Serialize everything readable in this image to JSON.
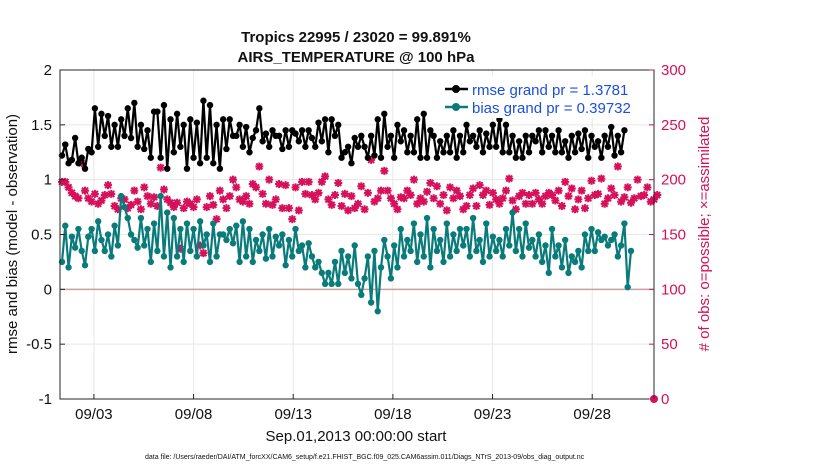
{
  "chart_data": {
    "type": "line",
    "title_line1": "Tropics 22995 / 23020 = 99.891%",
    "title_line2": "AIRS_TEMPERATURE @ 100 hPa",
    "xlabel": "Sep.01,2013 00:00:00 start",
    "ylabel_left": "rmse and bias (model - observation)",
    "ylabel_right": "# of obs: o=possible; ×=assimilated",
    "footer": "data file: /Users/raeder/DAI/ATM_forcXX/CAM6_setup/f.e21.FHIST_BGC.f09_025.CAM6assim.011/Diags_NTrS_2013-09/obs_diag_output.nc",
    "xlim": [
      1.3,
      31.1
    ],
    "x_tick_positions": [
      3,
      8,
      13,
      18,
      23,
      28
    ],
    "x_tick_labels": [
      "09/03",
      "09/08",
      "09/13",
      "09/18",
      "09/23",
      "09/28"
    ],
    "ylim_left": [
      -1,
      2
    ],
    "y_ticks_left": [
      -1,
      -0.5,
      0,
      0.5,
      1,
      1.5,
      2
    ],
    "y_tick_labels_left": [
      "-1",
      "-0.5",
      "0",
      "0.5",
      "1",
      "1.5",
      "2"
    ],
    "ylim_right": [
      0,
      300
    ],
    "y_ticks_right": [
      0,
      50,
      100,
      150,
      200,
      250,
      300
    ],
    "y_tick_labels_right": [
      "0",
      "50",
      "100",
      "150",
      "200",
      "250",
      "300"
    ],
    "grid": true,
    "legend_position": "top-right",
    "colors": {
      "rmse": "#000000",
      "bias": "#0a7b7b",
      "obs": "#d6105a",
      "zero": "#c8a0a0",
      "grid": "#e7e7e7"
    },
    "series": [
      {
        "name": "rmse grand pr = 1.3781",
        "axis": "left",
        "values": [
          1.22,
          1.32,
          1.15,
          1.18,
          1.38,
          1.15,
          1.2,
          1.1,
          1.28,
          1.25,
          1.65,
          1.3,
          1.6,
          1.4,
          1.58,
          1.3,
          1.5,
          1.3,
          1.55,
          1.4,
          1.65,
          1.38,
          1.7,
          1.3,
          1.5,
          1.28,
          1.45,
          1.2,
          1.62,
          1.62,
          1.2,
          1.68,
          1.1,
          1.55,
          1.25,
          1.6,
          1.3,
          1.5,
          1.1,
          1.55,
          1.2,
          1.52,
          1.15,
          1.72,
          1.2,
          1.68,
          1.15,
          1.5,
          1.1,
          1.55,
          1.28,
          1.55,
          1.4,
          1.4,
          1.5,
          1.3,
          1.48,
          1.25,
          1.38,
          1.45,
          1.65,
          1.35,
          1.42,
          1.3,
          1.45,
          1.4,
          1.4,
          1.28,
          1.45,
          1.3,
          1.45,
          1.42,
          1.35,
          1.45,
          1.3,
          1.45,
          1.38,
          1.3,
          1.52,
          1.35,
          1.55,
          1.25,
          1.55,
          1.4,
          1.5,
          1.2,
          1.25,
          1.3,
          1.15,
          1.38,
          1.3,
          1.4,
          1.3,
          1.2,
          1.4,
          1.22,
          1.55,
          1.2,
          1.6,
          1.3,
          1.4,
          1.2,
          1.5,
          1.35,
          1.45,
          1.25,
          1.4,
          1.25,
          1.55,
          1.2,
          1.6,
          1.2,
          1.45,
          1.4,
          1.2,
          1.35,
          1.25,
          1.4,
          1.25,
          1.45,
          1.2,
          1.4,
          1.25,
          1.5,
          1.35,
          1.4,
          1.3,
          1.45,
          1.25,
          1.42,
          1.3,
          1.5,
          1.3,
          1.55,
          1.25,
          1.5,
          1.25,
          1.4,
          1.2,
          1.35,
          1.2,
          1.4,
          1.25,
          1.4,
          1.35,
          1.45,
          1.25,
          1.45,
          1.3,
          1.4,
          1.25,
          1.45,
          1.25,
          1.35,
          1.2,
          1.4,
          1.25,
          1.42,
          1.28,
          1.45,
          1.2,
          1.4,
          1.3,
          1.35,
          1.2,
          1.4,
          1.3,
          1.48,
          1.22,
          1.4,
          1.25,
          1.45
        ]
      },
      {
        "name": "bias grand pr = 0.39732",
        "axis": "left",
        "values": [
          0.25,
          0.58,
          0.2,
          0.48,
          0.38,
          0.55,
          0.35,
          0.22,
          0.48,
          0.55,
          0.35,
          0.62,
          0.45,
          0.35,
          0.5,
          0.3,
          0.58,
          0.4,
          0.85,
          0.75,
          0.65,
          0.5,
          0.45,
          0.38,
          0.65,
          0.4,
          0.55,
          0.25,
          0.6,
          0.35,
          0.85,
          0.3,
          0.7,
          0.2,
          0.65,
          0.3,
          0.55,
          0.25,
          0.6,
          0.35,
          0.55,
          0.3,
          0.62,
          0.4,
          0.5,
          0.25,
          0.6,
          0.3,
          0.5,
          0.5,
          0.45,
          0.55,
          0.42,
          0.58,
          0.25,
          0.62,
          0.3,
          0.55,
          0.25,
          0.45,
          0.35,
          0.5,
          0.28,
          0.55,
          0.3,
          0.48,
          0.4,
          0.5,
          0.22,
          0.45,
          0.3,
          0.55,
          0.35,
          0.4,
          0.2,
          0.42,
          0.3,
          0.2,
          0.25,
          0.15,
          0.05,
          0.15,
          0.05,
          0.25,
          0.05,
          0.35,
          0.15,
          0.3,
          0.1,
          0.4,
          0.05,
          -0.05,
          0.1,
          0.3,
          -0.12,
          0.35,
          -0.2,
          0.2,
          0.45,
          0.3,
          0.1,
          0.4,
          0.2,
          0.55,
          0.3,
          0.45,
          0.35,
          0.6,
          0.25,
          0.5,
          0.3,
          0.65,
          0.2,
          0.55,
          0.35,
          0.45,
          0.25,
          0.6,
          0.3,
          0.5,
          0.35,
          0.55,
          0.4,
          0.55,
          0.3,
          0.65,
          0.35,
          0.45,
          0.25,
          0.6,
          0.3,
          0.48,
          0.35,
          0.45,
          0.3,
          0.55,
          0.4,
          0.7,
          0.35,
          0.55,
          0.3,
          0.6,
          0.38,
          0.45,
          0.3,
          0.5,
          0.25,
          0.4,
          0.15,
          0.55,
          0.3,
          0.4,
          0.2,
          0.45,
          0.15,
          0.3,
          0.25,
          0.35,
          0.2,
          0.5,
          0.35,
          0.55,
          0.35,
          0.52,
          0.45,
          0.48,
          0.4,
          0.45,
          0.5,
          0.3,
          0.4,
          0.6,
          0.02,
          0.35
        ]
      },
      {
        "name": "obs count",
        "axis": "right",
        "values": [
          198,
          198,
          193,
          188,
          185,
          183,
          215,
          190,
          183,
          180,
          187,
          178,
          181,
          186,
          195,
          187,
          176,
          173,
          183,
          182,
          174,
          177,
          190,
          180,
          173,
          193,
          185,
          178,
          184,
          176,
          211,
          191,
          182,
          179,
          175,
          179,
          137,
          174,
          180,
          178,
          175,
          182,
          140,
          133,
          175,
          185,
          177,
          164,
          190,
          182,
          174,
          185,
          200,
          193,
          182,
          180,
          185,
          178,
          196,
          193,
          212,
          187,
          178,
          200,
          177,
          182,
          196,
          174,
          195,
          174,
          164,
          193,
          172,
          198,
          187,
          198,
          186,
          182,
          188,
          198,
          203,
          182,
          177,
          186,
          197,
          176,
          187,
          172,
          185,
          174,
          178,
          194,
          173,
          188,
          218,
          180,
          183,
          190,
          208,
          190,
          183,
          178,
          173,
          184,
          183,
          190,
          186,
          200,
          178,
          183,
          180,
          189,
          197,
          183,
          194,
          178,
          186,
          172,
          193,
          183,
          190,
          185,
          173,
          176,
          186,
          192,
          176,
          195,
          186,
          190,
          177,
          188,
          182,
          178,
          183,
          190,
          201,
          181,
          173,
          185,
          188,
          178,
          186,
          178,
          188,
          182,
          178,
          185,
          188,
          186,
          181,
          190,
          176,
          198,
          185,
          192,
          173,
          182,
          190,
          174,
          183,
          199,
          186,
          187,
          201,
          178,
          183,
          192,
          186,
          212,
          180,
          184,
          193,
          179,
          183,
          200,
          185,
          186,
          193,
          180,
          182,
          186
        ]
      }
    ]
  }
}
